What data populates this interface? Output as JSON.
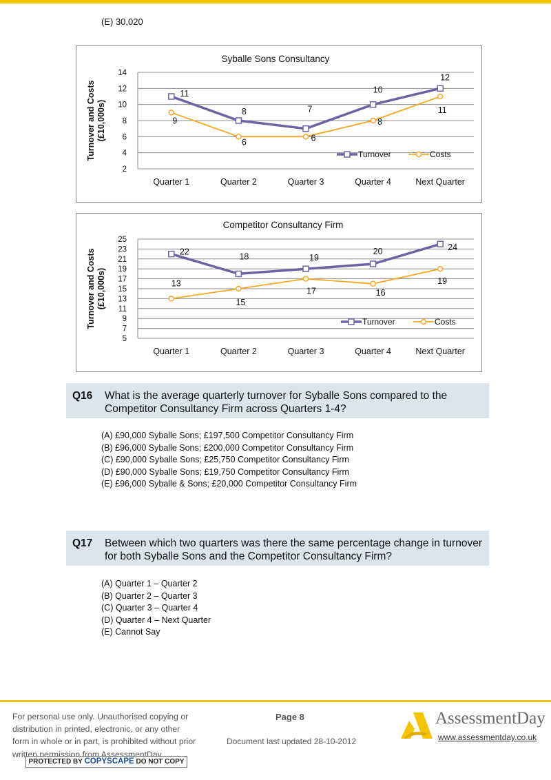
{
  "top_option": "(E)  30,020",
  "chart_data": [
    {
      "type": "line",
      "title": "Syballe Sons Consultancy",
      "ylabel": "Turnover and Costs (£10,000s)",
      "ylabel_lines": [
        "Turnover and Costs",
        "(£10,000s)"
      ],
      "categories": [
        "Quarter 1",
        "Quarter 2",
        "Quarter 3",
        "Quarter 4",
        "Next Quarter"
      ],
      "ylim": [
        2,
        14
      ],
      "yticks": [
        2,
        4,
        6,
        8,
        10,
        12,
        14
      ],
      "grid": true,
      "legend_position": "bottom-right",
      "series": [
        {
          "name": "Turnover",
          "values": [
            11,
            8,
            7,
            10,
            12
          ],
          "color": "#6b64a0",
          "marker": "square"
        },
        {
          "name": "Costs",
          "values": [
            9,
            6,
            6,
            8,
            11
          ],
          "color": "#f5a623",
          "marker": "circle"
        }
      ]
    },
    {
      "type": "line",
      "title": "Competitor  Consultancy Firm",
      "ylabel": "Turnover and Costs (£10,000s)",
      "ylabel_lines": [
        "Turnover and Costs",
        "(£10,000s)"
      ],
      "categories": [
        "Quarter 1",
        "Quarter 2",
        "Quarter 3",
        "Quarter 4",
        "Next Quarter"
      ],
      "ylim": [
        5,
        25
      ],
      "yticks": [
        5,
        7,
        9,
        11,
        13,
        15,
        17,
        19,
        21,
        23,
        25
      ],
      "grid": true,
      "legend_position": "bottom-right",
      "series": [
        {
          "name": "Turnover",
          "values": [
            22,
            18,
            19,
            20,
            24
          ],
          "color": "#6b64a0",
          "marker": "square"
        },
        {
          "name": "Costs",
          "values": [
            13,
            15,
            17,
            16,
            19
          ],
          "color": "#f5a623",
          "marker": "circle"
        }
      ]
    }
  ],
  "q16": {
    "number": "Q16",
    "text": "What is the average quarterly turnover for Syballe Sons compared to the Competitor Consultancy Firm across Quarters 1-4?",
    "options": [
      "(A)  £90,000 Syballe Sons; £197,500 Competitor Consultancy Firm",
      "(B)  £96,000 Syballe Sons; £200,000 Competitor Consultancy Firm",
      "(C)  £90,000 Syballe Sons; £25,750 Competitor Consultancy Firm",
      "(D)  £90,000 Syballe Sons; £19,750 Competitor Consultancy Firm",
      "(E)  £96,000 Syballe & Sons; £20,000 Competitor Consultancy Firm"
    ]
  },
  "q17": {
    "number": "Q17",
    "text": "Between which two quarters was there the same percentage change in turnover for both Syballe Sons and the Competitor Consultancy Firm?",
    "options": [
      "(A)  Quarter 1 – Quarter 2",
      "(B)  Quarter 2 – Quarter 3",
      "(C)  Quarter 3 – Quarter 4",
      "(D)  Quarter 4 – Next Quarter",
      "(E)  Cannot Say"
    ]
  },
  "footer": {
    "notice": "For personal use only. Unauthorised copying or distribution in printed, electronic, or any other form in whole or in part, is prohibited without prior written permission from AssessmentDay.",
    "copyscape_pre": "PROTECTED BY",
    "copyscape_brand": "COPYSCAPE",
    "copyscape_post": "DO NOT COPY",
    "page": "Page 8",
    "updated": "Document last updated 28-10-2012",
    "brand": "AssessmentDay",
    "url": "www.assessmentday.co.uk"
  },
  "colors": {
    "accent": "#f5c400",
    "question_bg": "#dce4ee",
    "turnover": "#6b64a0",
    "costs": "#f5a623"
  }
}
